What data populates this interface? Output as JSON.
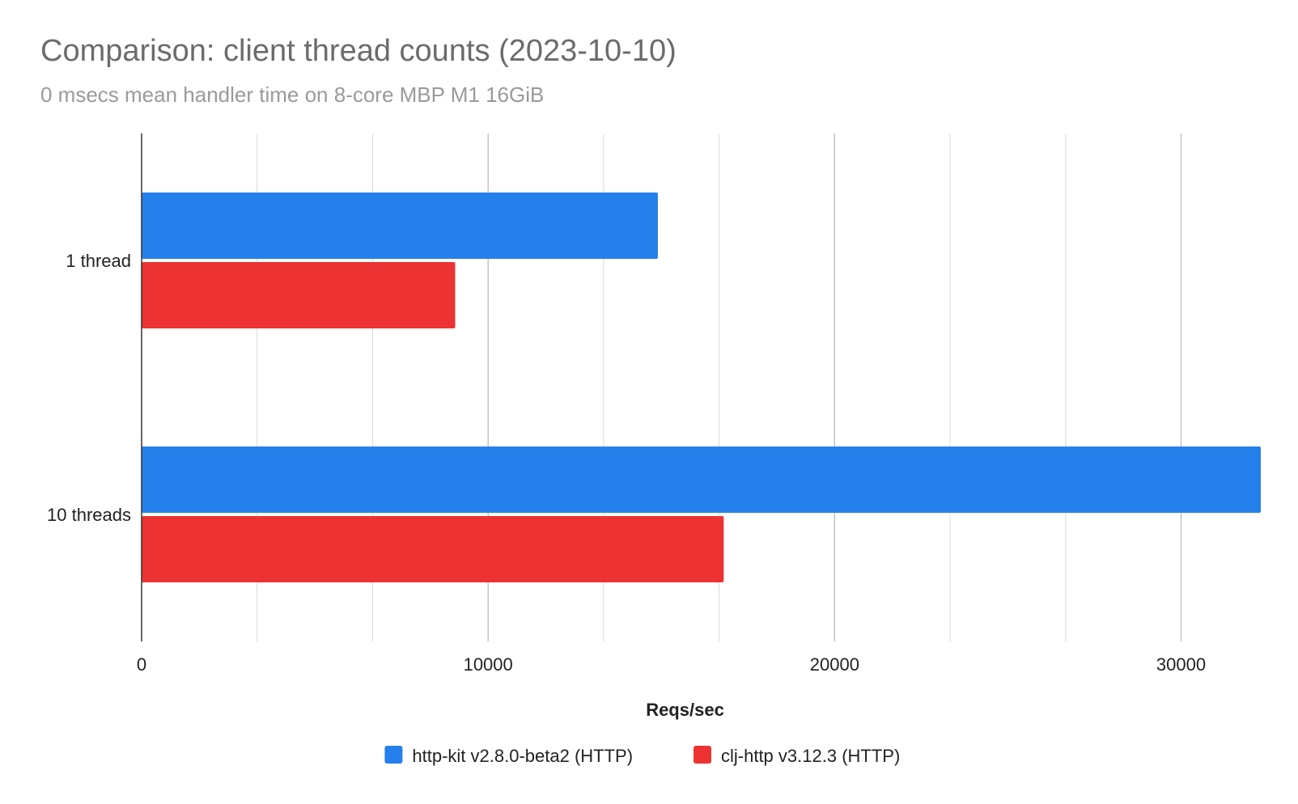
{
  "chart_data": {
    "type": "bar",
    "orientation": "horizontal",
    "title": "Comparison: client thread counts (2023-10-10)",
    "subtitle": "0 msecs mean handler time on 8-core MBP M1 16GiB",
    "xlabel": "Reqs/sec",
    "ylabel": "",
    "categories": [
      "1 thread",
      "10 threads"
    ],
    "series": [
      {
        "name": "http-kit v2.8.0-beta2 (HTTP)",
        "color": "#2680eb",
        "values": [
          14900,
          32300
        ]
      },
      {
        "name": "clj-http v3.12.3 (HTTP)",
        "color": "#ec3232",
        "values": [
          9050,
          16800
        ]
      }
    ],
    "xlim": [
      0,
      32300
    ],
    "x_ticks": [
      0,
      10000,
      20000,
      30000
    ],
    "minor_grid_step": 3333.33,
    "grid": true,
    "legend_position": "bottom"
  }
}
